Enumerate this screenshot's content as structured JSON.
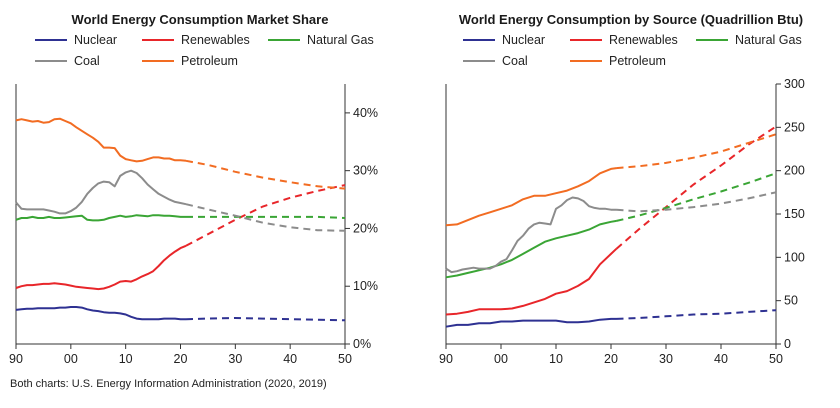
{
  "colors": {
    "Nuclear": "#2e3192",
    "Renewables": "#e8262a",
    "Natural Gas": "#3aa535",
    "Coal": "#8c8c8c",
    "Petroleum": "#f26c22"
  },
  "source_note": "Both charts: U.S. Energy Information Administration (2020, 2019)",
  "chart_data": [
    {
      "type": "line",
      "title": "World Energy Consumption Market Share",
      "xlabel": "",
      "ylabel": "",
      "x_ticks": [
        1990,
        2000,
        2010,
        2020,
        2030,
        2040,
        2050
      ],
      "x_tick_labels": [
        "90",
        "00",
        "10",
        "20",
        "30",
        "40",
        "50"
      ],
      "y_ticks": [
        0,
        10,
        20,
        30,
        40
      ],
      "y_tick_labels": [
        "0%",
        "10%",
        "20%",
        "30%",
        "40%"
      ],
      "xlim": [
        1990,
        2050
      ],
      "ylim": [
        0,
        45
      ],
      "y_axis_side": "right",
      "legend_position": "top",
      "projection_start": 2021,
      "legend": [
        "Nuclear",
        "Renewables",
        "Natural Gas",
        "Coal",
        "Petroleum"
      ],
      "series": [
        {
          "name": "Nuclear",
          "x": [
            1990,
            1991,
            1992,
            1993,
            1994,
            1995,
            1996,
            1997,
            1998,
            1999,
            2000,
            2001,
            2002,
            2003,
            2004,
            2005,
            2006,
            2007,
            2008,
            2009,
            2010,
            2011,
            2012,
            2013,
            2014,
            2015,
            2016,
            2017,
            2018,
            2019,
            2020,
            2021,
            2025,
            2030,
            2035,
            2040,
            2045,
            2050
          ],
          "values": [
            5.9,
            6.0,
            6.1,
            6.1,
            6.2,
            6.2,
            6.2,
            6.2,
            6.3,
            6.3,
            6.4,
            6.4,
            6.3,
            6.0,
            5.8,
            5.7,
            5.5,
            5.4,
            5.4,
            5.3,
            5.1,
            4.7,
            4.4,
            4.3,
            4.3,
            4.3,
            4.3,
            4.4,
            4.4,
            4.4,
            4.3,
            4.3,
            4.4,
            4.5,
            4.4,
            4.3,
            4.2,
            4.1
          ]
        },
        {
          "name": "Renewables",
          "x": [
            1990,
            1991,
            1992,
            1993,
            1994,
            1995,
            1996,
            1997,
            1998,
            1999,
            2000,
            2001,
            2002,
            2003,
            2004,
            2005,
            2006,
            2007,
            2008,
            2009,
            2010,
            2011,
            2012,
            2013,
            2014,
            2015,
            2016,
            2017,
            2018,
            2019,
            2020,
            2021,
            2025,
            2030,
            2035,
            2040,
            2045,
            2050
          ],
          "values": [
            9.7,
            10.0,
            10.2,
            10.2,
            10.3,
            10.4,
            10.4,
            10.5,
            10.4,
            10.3,
            10.1,
            9.9,
            9.8,
            9.7,
            9.6,
            9.5,
            9.6,
            9.9,
            10.3,
            10.8,
            10.9,
            10.8,
            11.2,
            11.7,
            12.1,
            12.6,
            13.5,
            14.5,
            15.3,
            16.0,
            16.6,
            17.0,
            19.0,
            21.5,
            23.8,
            25.3,
            26.5,
            27.5
          ]
        },
        {
          "name": "Natural Gas",
          "x": [
            1990,
            1991,
            1992,
            1993,
            1994,
            1995,
            1996,
            1997,
            1998,
            1999,
            2000,
            2001,
            2002,
            2003,
            2004,
            2005,
            2006,
            2007,
            2008,
            2009,
            2010,
            2011,
            2012,
            2013,
            2014,
            2015,
            2016,
            2017,
            2018,
            2019,
            2020,
            2021,
            2025,
            2030,
            2035,
            2040,
            2045,
            2050
          ],
          "values": [
            21.5,
            21.8,
            21.8,
            22.0,
            21.8,
            21.8,
            22.0,
            21.8,
            21.8,
            21.9,
            22.0,
            22.1,
            22.2,
            21.5,
            21.4,
            21.4,
            21.5,
            21.8,
            22.0,
            22.2,
            22.0,
            22.1,
            22.3,
            22.2,
            22.1,
            22.3,
            22.3,
            22.2,
            22.2,
            22.1,
            22.0,
            22.0,
            22.0,
            22.0,
            22.0,
            22.0,
            22.0,
            21.8
          ]
        },
        {
          "name": "Coal",
          "x": [
            1990,
            1991,
            1992,
            1993,
            1994,
            1995,
            1996,
            1997,
            1998,
            1999,
            2000,
            2001,
            2002,
            2003,
            2004,
            2005,
            2006,
            2007,
            2008,
            2009,
            2010,
            2011,
            2012,
            2013,
            2014,
            2015,
            2016,
            2017,
            2018,
            2019,
            2020,
            2021,
            2025,
            2030,
            2035,
            2040,
            2045,
            2050
          ],
          "values": [
            24.5,
            23.4,
            23.3,
            23.3,
            23.3,
            23.3,
            23.1,
            22.9,
            22.6,
            22.6,
            23.0,
            23.6,
            24.6,
            26.0,
            27.0,
            27.8,
            28.1,
            28.0,
            27.3,
            29.1,
            29.7,
            30.0,
            29.6,
            28.7,
            27.6,
            26.8,
            26.0,
            25.5,
            25.0,
            24.6,
            24.4,
            24.2,
            23.3,
            22.2,
            21.0,
            20.2,
            19.7,
            19.6
          ]
        },
        {
          "name": "Petroleum",
          "x": [
            1990,
            1991,
            1992,
            1993,
            1994,
            1995,
            1996,
            1997,
            1998,
            1999,
            2000,
            2001,
            2002,
            2003,
            2004,
            2005,
            2006,
            2007,
            2008,
            2009,
            2010,
            2011,
            2012,
            2013,
            2014,
            2015,
            2016,
            2017,
            2018,
            2019,
            2020,
            2021,
            2025,
            2030,
            2035,
            2040,
            2045,
            2050
          ],
          "values": [
            38.7,
            38.9,
            38.7,
            38.5,
            38.6,
            38.3,
            38.4,
            38.9,
            39.0,
            38.6,
            38.2,
            37.5,
            36.9,
            36.3,
            35.7,
            35.0,
            34.0,
            34.0,
            33.9,
            32.6,
            32.0,
            31.8,
            31.6,
            31.7,
            32.0,
            32.3,
            32.3,
            32.1,
            32.1,
            31.8,
            31.8,
            31.7,
            31.0,
            29.8,
            28.8,
            28.0,
            27.3,
            26.9
          ]
        }
      ]
    },
    {
      "type": "line",
      "title": "World Energy Consumption by Source (Quadrillion Btu)",
      "xlabel": "",
      "ylabel": "",
      "x_ticks": [
        1990,
        2000,
        2010,
        2020,
        2030,
        2040,
        2050
      ],
      "x_tick_labels": [
        "90",
        "00",
        "10",
        "20",
        "30",
        "40",
        "50"
      ],
      "y_ticks": [
        0,
        50,
        100,
        150,
        200,
        250,
        300
      ],
      "y_tick_labels": [
        "0",
        "50",
        "100",
        "150",
        "200",
        "250",
        "300"
      ],
      "xlim": [
        1990,
        2050
      ],
      "ylim": [
        0,
        300
      ],
      "y_axis_side": "right",
      "legend_position": "top",
      "projection_start": 2021,
      "legend": [
        "Nuclear",
        "Renewables",
        "Natural Gas",
        "Coal",
        "Petroleum"
      ],
      "series": [
        {
          "name": "Nuclear",
          "x": [
            1990,
            1992,
            1994,
            1996,
            1998,
            2000,
            2002,
            2004,
            2006,
            2008,
            2010,
            2012,
            2014,
            2016,
            2018,
            2020,
            2021,
            2025,
            2030,
            2035,
            2040,
            2045,
            2050
          ],
          "values": [
            20,
            22,
            22,
            24,
            24,
            26,
            26,
            27,
            27,
            27,
            27,
            25,
            25,
            26,
            28,
            29,
            29,
            30,
            32,
            34,
            35,
            37,
            39
          ]
        },
        {
          "name": "Renewables",
          "x": [
            1990,
            1992,
            1994,
            1996,
            1998,
            2000,
            2002,
            2004,
            2006,
            2008,
            2010,
            2012,
            2014,
            2016,
            2018,
            2020,
            2021,
            2025,
            2030,
            2035,
            2040,
            2045,
            2050
          ],
          "values": [
            34,
            35,
            37,
            40,
            40,
            40,
            41,
            44,
            48,
            52,
            58,
            61,
            67,
            75,
            92,
            104,
            110,
            132,
            158,
            184,
            206,
            230,
            251
          ]
        },
        {
          "name": "Natural Gas",
          "x": [
            1990,
            1992,
            1994,
            1996,
            1998,
            2000,
            2002,
            2004,
            2006,
            2008,
            2010,
            2012,
            2014,
            2016,
            2018,
            2020,
            2021,
            2025,
            2030,
            2035,
            2040,
            2045,
            2050
          ],
          "values": [
            77,
            79,
            82,
            85,
            88,
            92,
            97,
            104,
            111,
            118,
            122,
            125,
            128,
            132,
            138,
            141,
            142,
            148,
            157,
            167,
            176,
            186,
            197
          ]
        },
        {
          "name": "Coal",
          "x": [
            1990,
            1991,
            1992,
            1993,
            1994,
            1995,
            1996,
            1997,
            1998,
            1999,
            2000,
            2001,
            2002,
            2003,
            2004,
            2005,
            2006,
            2007,
            2008,
            2009,
            2010,
            2011,
            2012,
            2013,
            2014,
            2015,
            2016,
            2017,
            2018,
            2019,
            2020,
            2021,
            2025,
            2030,
            2035,
            2040,
            2045,
            2050
          ],
          "values": [
            87,
            83,
            84,
            86,
            87,
            88,
            87,
            87,
            87,
            90,
            95,
            98,
            108,
            119,
            125,
            133,
            138,
            140,
            139,
            138,
            156,
            160,
            166,
            169,
            168,
            165,
            159,
            157,
            156,
            156,
            155,
            155,
            153,
            155,
            158,
            162,
            168,
            175
          ]
        },
        {
          "name": "Petroleum",
          "x": [
            1990,
            1992,
            1994,
            1996,
            1998,
            2000,
            2002,
            2004,
            2006,
            2008,
            2010,
            2012,
            2014,
            2016,
            2018,
            2020,
            2021,
            2025,
            2030,
            2035,
            2040,
            2045,
            2050
          ],
          "values": [
            137,
            138,
            143,
            148,
            152,
            156,
            160,
            167,
            171,
            171,
            174,
            177,
            182,
            188,
            197,
            202,
            203,
            205,
            209,
            215,
            222,
            232,
            242
          ]
        }
      ]
    }
  ]
}
